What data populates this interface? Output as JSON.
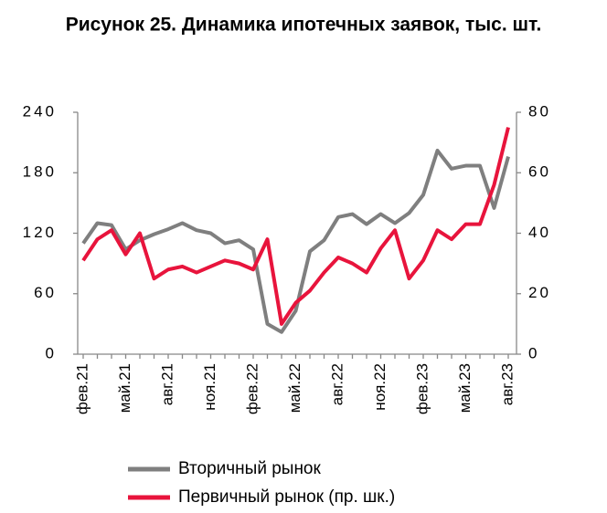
{
  "chart_data": {
    "type": "line",
    "title": "Рисунок 25. Динамика ипотечных заявок, тыс. шт.",
    "categories": [
      "фев.21",
      null,
      null,
      "май.21",
      null,
      null,
      "авг.21",
      null,
      null,
      "ноя.21",
      null,
      null,
      "фев.22",
      null,
      null,
      "май.22",
      null,
      null,
      "авг.22",
      null,
      null,
      "ноя.22",
      null,
      null,
      "фев.23",
      null,
      null,
      "май.23",
      null,
      null,
      "авг.23"
    ],
    "series": [
      {
        "name": "Вторичный рынок",
        "color": "#7f7f7f",
        "axis": "y",
        "values": [
          110,
          130,
          128,
          104,
          113,
          119,
          124,
          130,
          123,
          120,
          110,
          113,
          104,
          30,
          22,
          43,
          102,
          113,
          136,
          139,
          129,
          139,
          130,
          140,
          158,
          202,
          184,
          187,
          187,
          145,
          196
        ]
      },
      {
        "name": "Первичный рынок (пр. шк.)",
        "color": "#e8143c",
        "axis": "y2",
        "values": [
          31,
          38,
          41,
          33,
          40,
          25,
          28,
          29,
          27,
          29,
          31,
          30,
          28,
          38,
          10,
          17,
          21,
          27,
          32,
          30,
          27,
          35,
          41,
          25,
          31,
          41,
          38,
          43,
          43,
          56,
          75
        ]
      }
    ],
    "ylim": [
      0,
      240
    ],
    "yticks": [
      0,
      60,
      120,
      180,
      240
    ],
    "y2lim": [
      0,
      80
    ],
    "y2ticks": [
      0,
      20,
      40,
      60,
      80
    ],
    "grid": false
  }
}
